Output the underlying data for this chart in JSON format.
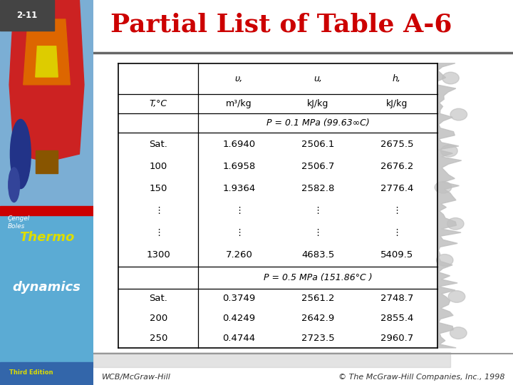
{
  "title": "Partial List of Table A-6",
  "slide_num": "2-11",
  "title_color": "#CC0000",
  "title_fontsize": 26,
  "bg_color": "#FFFFFF",
  "section1_header": "P = 0.1 MPa (99.63∞C)",
  "section1_rows": [
    [
      "Sat.",
      "1.6940",
      "2506.1",
      "2675.5"
    ],
    [
      "100",
      "1.6958",
      "2506.7",
      "2676.2"
    ],
    [
      "150",
      "1.9364",
      "2582.8",
      "2776.4"
    ],
    [
      "⋮",
      "⋮",
      "⋮",
      "⋮"
    ],
    [
      "⋮",
      "⋮",
      "⋮",
      "⋮"
    ],
    [
      "1300",
      "7.260",
      "4683.5",
      "5409.5"
    ]
  ],
  "section2_header": "P = 0.5 MPa (151.86°C )",
  "section2_rows": [
    [
      "Sat.",
      "0.3749",
      "2561.2",
      "2748.7"
    ],
    [
      "200",
      "0.4249",
      "2642.9",
      "2855.4"
    ],
    [
      "250",
      "0.4744",
      "2723.5",
      "2960.7"
    ]
  ],
  "footer_left": "WCB/McGraw-Hill",
  "footer_right": "© The McGraw-Hill Companies, Inc., 1998",
  "cengel_boles_text": "Çengel\nBoles",
  "thermo_color": "#DDDD00",
  "dynamics_color": "#FFFFFF",
  "left_top_color": "#87AECF",
  "left_bottom_color": "#5DA0C8",
  "bottom_strip_color": "#5DA0C8",
  "third_edition_color": "#DDDD00",
  "slide_num_bg": "#555555"
}
